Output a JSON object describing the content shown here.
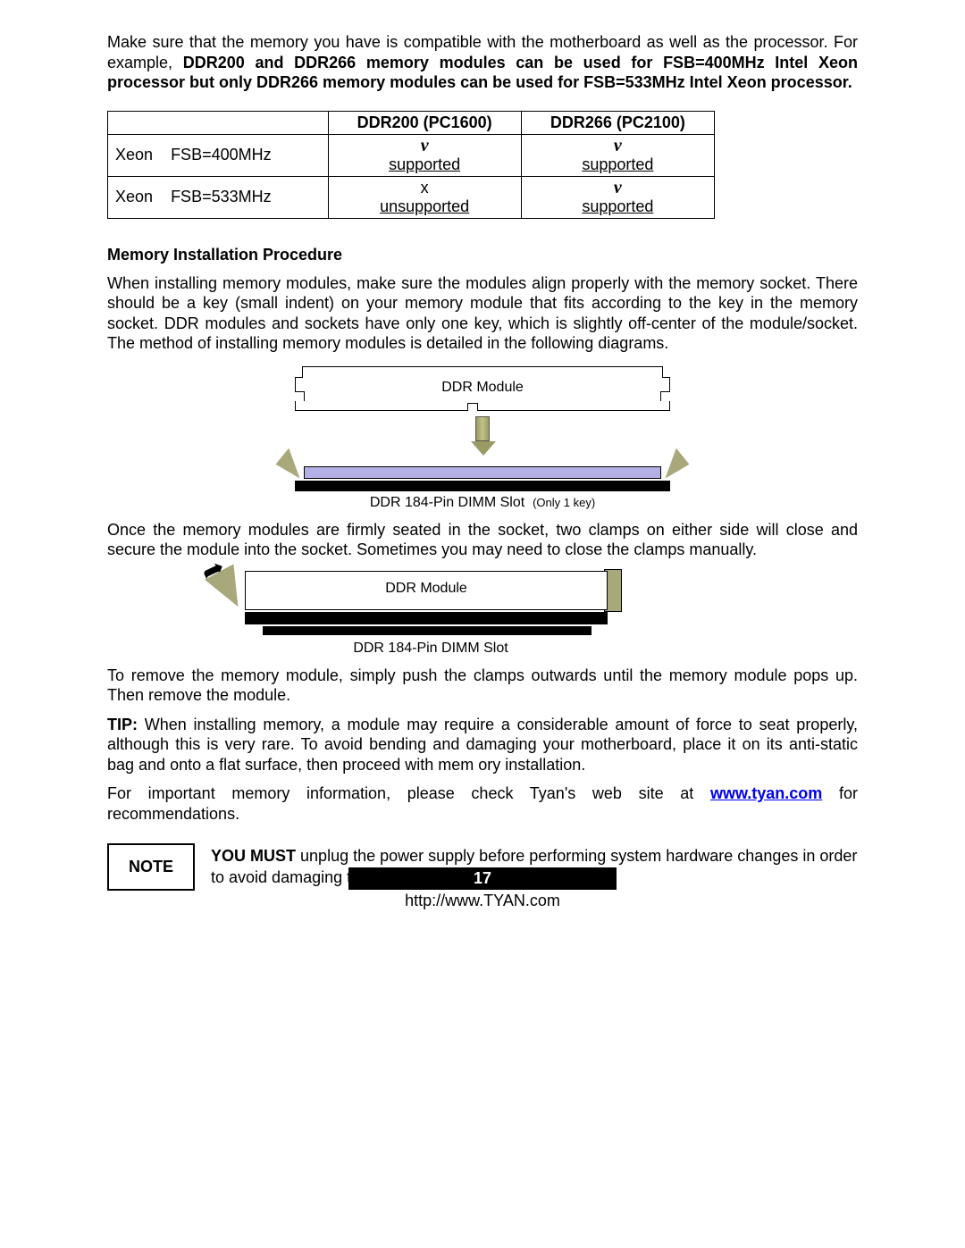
{
  "intro": {
    "lead": "Make sure that the memory you have is compatible with the motherboard as well as the processor.  For example, ",
    "bold": "DDR200 and DDR266 memory modules can be used for FSB=400MHz Intel Xeon processor but only DDR266 memory modules can be used for FSB=533MHz Intel Xeon processor."
  },
  "table": {
    "columns": [
      "",
      "DDR200 (PC1600)",
      "DDR266 (PC2100)"
    ],
    "rows": [
      {
        "head_a": "Xeon",
        "head_b": "FSB=400MHz",
        "c1_sym": "v",
        "c1_txt": "supported",
        "c2_sym": "v",
        "c2_txt": "supported"
      },
      {
        "head_a": "Xeon",
        "head_b": "FSB=533MHz",
        "c1_sym": "x",
        "c1_txt": "unsupported",
        "c2_sym": "v",
        "c2_txt": "supported"
      }
    ],
    "font_size": 18,
    "border_color": "#000000"
  },
  "sections": {
    "install_head": "Memory Installation Procedure",
    "install_p1": "When installing memory modules, make sure the modules align properly with the memory socket. There should be a key (small indent) on your memory module that fits according to the key in the memory socket. DDR modules and sockets have only one key, which is slightly off-center of the module/socket. The method of installing memory modules is detailed in the following diagrams.",
    "after_d1": "Once the memory modules are firmly seated in the socket, two clamps on either side will close and secure the module into the socket. Sometimes you may need to close the clamps manually.",
    "remove": "To remove the memory module, simply push the clamps outwards until the memory module pops up. Then remove the module.",
    "tip_lead": "TIP:",
    "tip_body": " When installing memory, a module may require a considerable amount of force to seat properly, although this is very rare. To avoid bending and damaging your motherboard, place it on its anti-static bag and onto a flat surface, then proceed with mem ory installation.",
    "info_pre": "For important memory information, please check Tyan's web site at ",
    "info_link": "www.tyan.com",
    "info_post": " for recommendations."
  },
  "diagrams": {
    "module_label": "DDR Module",
    "slot_caption": "DDR 184-Pin DIMM Slot",
    "slot_caption_extra": "(Only 1 key)",
    "colors": {
      "clip": "#a9a87a",
      "slot_bar": "#b4b0e6",
      "base": "#000000",
      "outline": "#000000"
    }
  },
  "note": {
    "box": "NOTE",
    "bold": "YOU MUST",
    "text": " unplug the power supply before performing system hardware changes in order to avoid damaging the board or expansion device."
  },
  "footer": {
    "page": "17",
    "url": "http://www.TYAN.com"
  }
}
